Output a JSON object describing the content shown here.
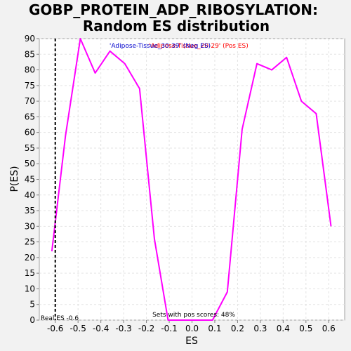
{
  "chart_data": {
    "type": "line",
    "title_line1": "GOBP_PROTEIN_ADP_RIBOSYLATION:",
    "title_line2": "Random ES distribution",
    "xlabel": "ES",
    "ylabel": "P(ES)",
    "xlim": [
      -0.67,
      0.67
    ],
    "ylim": [
      0,
      90
    ],
    "xticks": [
      -0.6,
      -0.5,
      -0.4,
      -0.3,
      -0.2,
      -0.1,
      0.0,
      0.1,
      0.2,
      0.3,
      0.4,
      0.5,
      0.6
    ],
    "yticks": [
      0,
      5,
      10,
      15,
      20,
      25,
      30,
      35,
      40,
      45,
      50,
      55,
      60,
      65,
      70,
      75,
      80,
      85,
      90
    ],
    "grid": true,
    "series": [
      {
        "color": "#ff00ff",
        "x": [
          -0.615,
          -0.555,
          -0.49,
          -0.425,
          -0.36,
          -0.295,
          -0.23,
          -0.165,
          -0.105,
          -0.04,
          0.03,
          0.09,
          0.155,
          0.22,
          0.285,
          0.35,
          0.415,
          0.48,
          0.545,
          0.61
        ],
        "y": [
          22,
          59,
          90,
          79,
          86,
          82,
          74,
          26,
          0,
          0,
          0,
          0,
          9,
          61,
          82,
          80,
          84,
          70,
          66,
          30
        ]
      }
    ],
    "legend": {
      "neg_label": "'Adipose-Tissue_30-39' (Neg ES)",
      "neg_color": "#0000cc",
      "pos_label": "'Adipose-Tissue_20-29' (Pos ES)",
      "pos_color": "#ff0000",
      "position": "top-center"
    },
    "real_es": {
      "value": -0.6,
      "label": "Real ES -0.6"
    },
    "annotation": "Sets with pos scores: 48%"
  }
}
